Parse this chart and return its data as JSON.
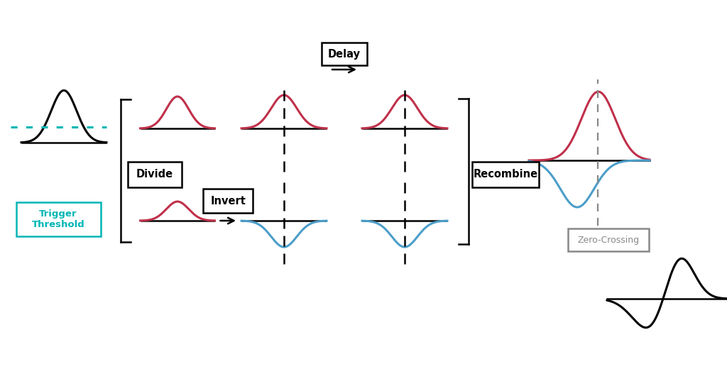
{
  "bg_color": "#ffffff",
  "crimson": "#c0304a",
  "blue": "#4b9ec9",
  "teal": "#00b5b5",
  "gray": "#888888",
  "labels": {
    "divide": "Divide",
    "invert": "Invert",
    "delay": "Delay",
    "recombine": "Recombine",
    "trigger": "Trigger\nThreshold",
    "zero_crossing": "Zero-Crossing"
  }
}
